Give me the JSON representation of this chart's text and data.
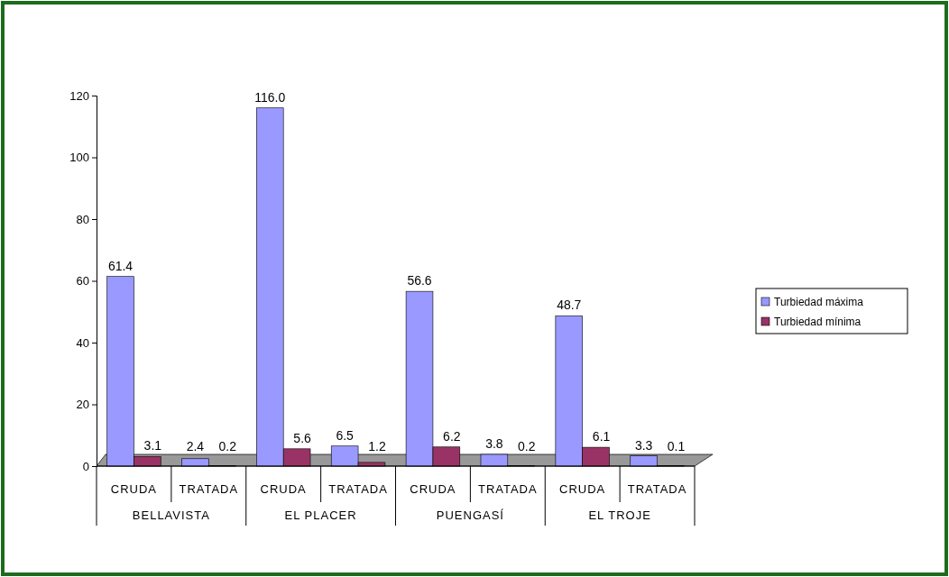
{
  "chart_data": {
    "type": "bar",
    "categories": [
      "CRUDA",
      "TRATADA",
      "CRUDA",
      "TRATADA",
      "CRUDA",
      "TRATADA",
      "CRUDA",
      "TRATADA"
    ],
    "annotations": [
      "BELLAVISTA",
      "EL PLACER",
      "PUENGASÍ",
      "EL TROJE"
    ],
    "series": [
      {
        "name": "Turbiedad máxima",
        "color": "#9999ff",
        "values": [
          61.4,
          2.4,
          116.0,
          6.5,
          56.6,
          3.8,
          48.7,
          3.3
        ],
        "value_labels": [
          "61.4",
          "2.4",
          "116.0",
          "6.5",
          "56.6",
          "3.8",
          "48.7",
          "3.3"
        ]
      },
      {
        "name": "Turbiedad mínima",
        "color": "#993366",
        "values": [
          3.1,
          0.2,
          5.6,
          1.2,
          6.2,
          0.2,
          6.1,
          0.1
        ],
        "value_labels": [
          "3.1",
          "0.2",
          "5.6",
          "1.2",
          "6.2",
          "0.2",
          "6.1",
          "0.1"
        ]
      }
    ],
    "ylim": [
      0,
      120
    ],
    "yticks": [
      0,
      20,
      40,
      60,
      80,
      100,
      120
    ],
    "grid": false,
    "legend": "right"
  }
}
